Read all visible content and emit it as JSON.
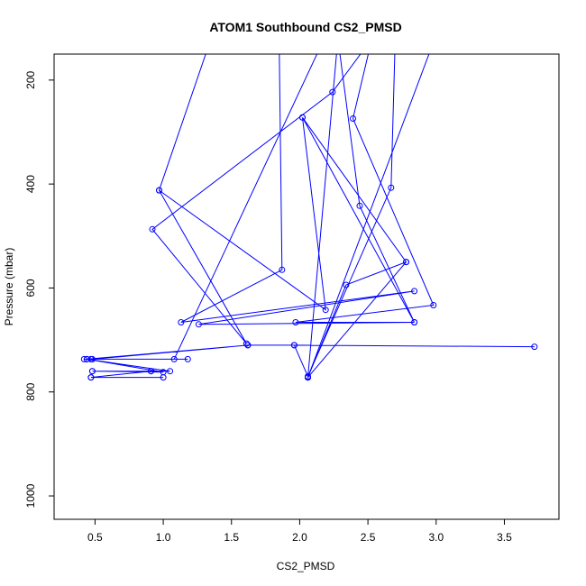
{
  "chart_data": {
    "type": "line",
    "title": "ATOM1 Southbound CS2_PMSD",
    "xlabel": "CS2_PMSD",
    "ylabel": "Pressure (mbar)",
    "xlim": [
      0.2,
      3.9
    ],
    "ylim": [
      1045,
      150
    ],
    "y_reversed": true,
    "x_ticks": [
      0.5,
      1.0,
      1.5,
      2.0,
      2.5,
      3.0,
      3.5
    ],
    "x_tick_labels": [
      "0.5",
      "1.0",
      "1.5",
      "2.0",
      "2.5",
      "3.0",
      "3.5"
    ],
    "y_ticks": [
      200,
      400,
      600,
      800,
      1000
    ],
    "y_tick_labels": [
      "200",
      "400",
      "600",
      "800",
      "1000"
    ],
    "grid": false,
    "line_color": "#0000ff",
    "series": [
      {
        "markers": "open-circle",
        "points": [
          [
            1.85,
            130
          ],
          [
            1.87,
            565
          ],
          [
            1.13,
            666
          ],
          [
            2.84,
            606
          ],
          [
            1.26,
            670
          ],
          [
            2.84,
            666
          ],
          [
            1.97,
            666
          ],
          [
            2.98,
            633
          ],
          [
            2.39,
            274
          ],
          [
            2.53,
            120
          ],
          [
            2.24,
            223
          ],
          [
            0.92,
            487
          ],
          [
            1.61,
            707
          ],
          [
            0.97,
            412
          ],
          [
            1.35,
            120
          ],
          [
            2.18,
            120
          ],
          [
            1.08,
            737
          ],
          [
            0.47,
            737
          ],
          [
            1.18,
            737
          ],
          [
            0.42,
            737
          ],
          [
            0.48,
            737
          ],
          [
            1.62,
            710
          ],
          [
            0.44,
            737
          ],
          [
            1.0,
            762
          ],
          [
            0.48,
            760
          ],
          [
            0.91,
            760
          ],
          [
            0.47,
            772
          ],
          [
            1.0,
            772
          ],
          [
            0.47,
            772
          ],
          [
            0.91,
            760
          ],
          [
            0.48,
            760
          ],
          [
            1.05,
            760
          ],
          [
            0.44,
            737
          ],
          [
            1.62,
            710
          ],
          [
            1.96,
            710
          ],
          [
            3.72,
            713
          ],
          [
            1.96,
            710
          ],
          [
            2.06,
            770
          ],
          [
            2.67,
            407
          ],
          [
            2.7,
            120
          ],
          [
            2.99,
            120
          ],
          [
            2.06,
            772
          ],
          [
            2.34,
            594
          ],
          [
            2.78,
            550
          ],
          [
            2.02,
            272
          ],
          [
            2.84,
            666
          ],
          [
            2.44,
            442
          ],
          [
            2.28,
            120
          ],
          [
            2.06,
            772
          ],
          [
            2.06,
            772
          ],
          [
            2.78,
            550
          ],
          [
            2.02,
            272
          ],
          [
            2.19,
            642
          ],
          [
            0.97,
            412
          ]
        ]
      }
    ]
  }
}
